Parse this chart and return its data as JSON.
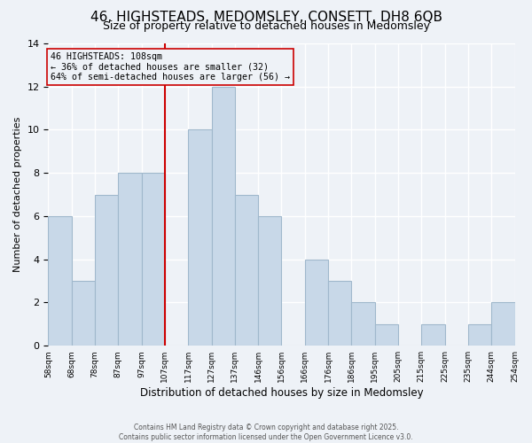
{
  "title": "46, HIGHSTEADS, MEDOMSLEY, CONSETT, DH8 6QB",
  "subtitle": "Size of property relative to detached houses in Medomsley",
  "xlabel": "Distribution of detached houses by size in Medomsley",
  "ylabel": "Number of detached properties",
  "bar_heights": [
    6,
    3,
    7,
    8,
    8,
    0,
    10,
    12,
    7,
    6,
    0,
    4,
    3,
    2,
    1,
    0,
    1,
    0,
    1,
    2
  ],
  "xtick_labels": [
    "58sqm",
    "68sqm",
    "78sqm",
    "87sqm",
    "97sqm",
    "107sqm",
    "117sqm",
    "127sqm",
    "137sqm",
    "146sqm",
    "156sqm",
    "166sqm",
    "176sqm",
    "186sqm",
    "195sqm",
    "205sqm",
    "215sqm",
    "225sqm",
    "235sqm",
    "244sqm",
    "254sqm"
  ],
  "bar_color": "#c8d8e8",
  "bar_edge_color": "#a0b8cc",
  "vline_bar_index": 5,
  "vline_color": "#cc0000",
  "annotation_title": "46 HIGHSTEADS: 108sqm",
  "annotation_line2": "← 36% of detached houses are smaller (32)",
  "annotation_line3": "64% of semi-detached houses are larger (56) →",
  "annotation_box_edge_color": "#cc0000",
  "ylim": [
    0,
    14
  ],
  "yticks": [
    0,
    2,
    4,
    6,
    8,
    10,
    12,
    14
  ],
  "background_color": "#eef2f7",
  "grid_color": "#ffffff",
  "title_fontsize": 11,
  "subtitle_fontsize": 9,
  "footer_line1": "Contains HM Land Registry data © Crown copyright and database right 2025.",
  "footer_line2": "Contains public sector information licensed under the Open Government Licence v3.0."
}
